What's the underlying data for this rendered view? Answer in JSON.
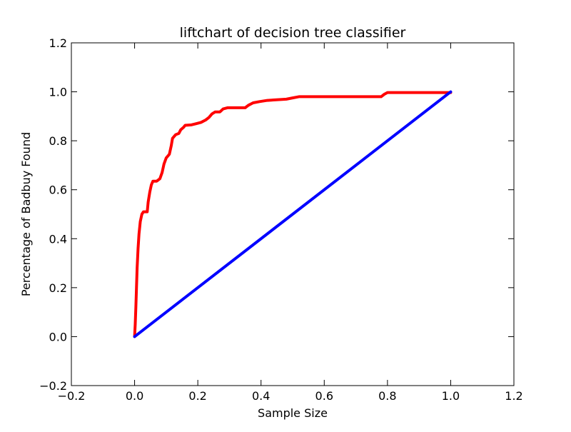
{
  "chart_data": {
    "type": "line",
    "title": "liftchart of decision tree classifier",
    "xlabel": "Sample Size",
    "ylabel": "Percentage of Badbuy Found",
    "xlim": [
      -0.2,
      1.2
    ],
    "ylim": [
      -0.2,
      1.2
    ],
    "xticks": [
      "−0.2",
      "0.0",
      "0.2",
      "0.4",
      "0.6",
      "0.8",
      "1.0",
      "1.2"
    ],
    "yticks": [
      "−0.2",
      "0.0",
      "0.2",
      "0.4",
      "0.6",
      "0.8",
      "1.0",
      "1.2"
    ],
    "grid": false,
    "legend": "none",
    "series": [
      {
        "color": "#ff0000",
        "points": [
          [
            0.0,
            0.0
          ],
          [
            0.002,
            0.05
          ],
          [
            0.004,
            0.12
          ],
          [
            0.006,
            0.2
          ],
          [
            0.008,
            0.28
          ],
          [
            0.011,
            0.36
          ],
          [
            0.014,
            0.42
          ],
          [
            0.018,
            0.47
          ],
          [
            0.023,
            0.5
          ],
          [
            0.028,
            0.51
          ],
          [
            0.04,
            0.51
          ],
          [
            0.043,
            0.55
          ],
          [
            0.048,
            0.59
          ],
          [
            0.053,
            0.62
          ],
          [
            0.058,
            0.635
          ],
          [
            0.07,
            0.635
          ],
          [
            0.08,
            0.645
          ],
          [
            0.087,
            0.67
          ],
          [
            0.093,
            0.705
          ],
          [
            0.1,
            0.73
          ],
          [
            0.11,
            0.745
          ],
          [
            0.116,
            0.78
          ],
          [
            0.12,
            0.81
          ],
          [
            0.13,
            0.825
          ],
          [
            0.14,
            0.83
          ],
          [
            0.146,
            0.845
          ],
          [
            0.155,
            0.855
          ],
          [
            0.16,
            0.863
          ],
          [
            0.18,
            0.865
          ],
          [
            0.195,
            0.87
          ],
          [
            0.21,
            0.875
          ],
          [
            0.225,
            0.885
          ],
          [
            0.235,
            0.895
          ],
          [
            0.245,
            0.91
          ],
          [
            0.255,
            0.918
          ],
          [
            0.27,
            0.918
          ],
          [
            0.28,
            0.93
          ],
          [
            0.295,
            0.935
          ],
          [
            0.35,
            0.935
          ],
          [
            0.36,
            0.945
          ],
          [
            0.375,
            0.955
          ],
          [
            0.395,
            0.96
          ],
          [
            0.42,
            0.965
          ],
          [
            0.48,
            0.97
          ],
          [
            0.5,
            0.975
          ],
          [
            0.52,
            0.98
          ],
          [
            0.6,
            0.98
          ],
          [
            0.78,
            0.98
          ],
          [
            0.79,
            0.99
          ],
          [
            0.8,
            0.997
          ],
          [
            0.82,
            0.997
          ],
          [
            1.0,
            0.997
          ]
        ]
      },
      {
        "color": "#0000ff",
        "points": [
          [
            0.0,
            0.0
          ],
          [
            1.0,
            1.0
          ]
        ]
      }
    ]
  }
}
